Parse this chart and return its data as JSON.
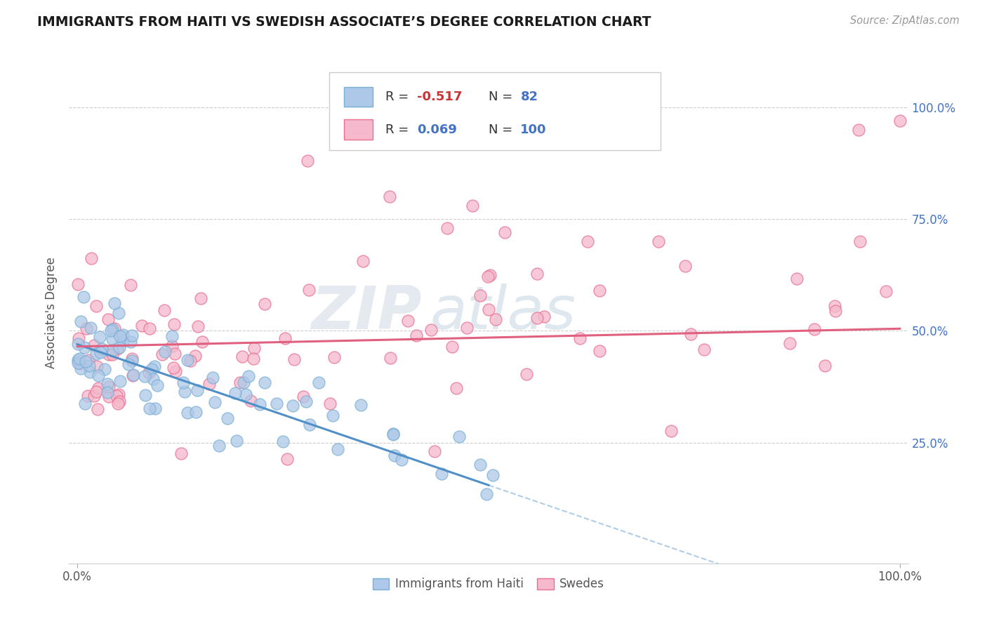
{
  "title": "IMMIGRANTS FROM HAITI VS SWEDISH ASSOCIATE’S DEGREE CORRELATION CHART",
  "source": "Source: ZipAtlas.com",
  "ylabel": "Associate's Degree",
  "legend_haiti": "Immigrants from Haiti",
  "legend_swedes": "Swedes",
  "R_haiti": -0.517,
  "N_haiti": 82,
  "R_swedes": 0.069,
  "N_swedes": 100,
  "color_haiti": "#adc8e8",
  "color_swedes": "#f5b8cc",
  "edge_haiti": "#7aafd4",
  "edge_swedes": "#e87090",
  "line_haiti": "#5090c8",
  "line_swedes": "#e06080",
  "watermark_zip": "ZIP",
  "watermark_atlas": "atlas",
  "grid_color": "#cccccc",
  "bg_color": "#ffffff",
  "title_color": "#1a1a1a",
  "source_color": "#999999",
  "tick_color": "#4472c4",
  "ylabel_color": "#555555",
  "ytick_vals": [
    0.25,
    0.5,
    0.75,
    1.0
  ],
  "ytick_labels": [
    "25.0%",
    "50.0%",
    "75.0%",
    "100.0%"
  ],
  "xtick_vals": [
    0.0,
    100.0
  ],
  "xtick_labels": [
    "0.0%",
    "100.0%"
  ]
}
